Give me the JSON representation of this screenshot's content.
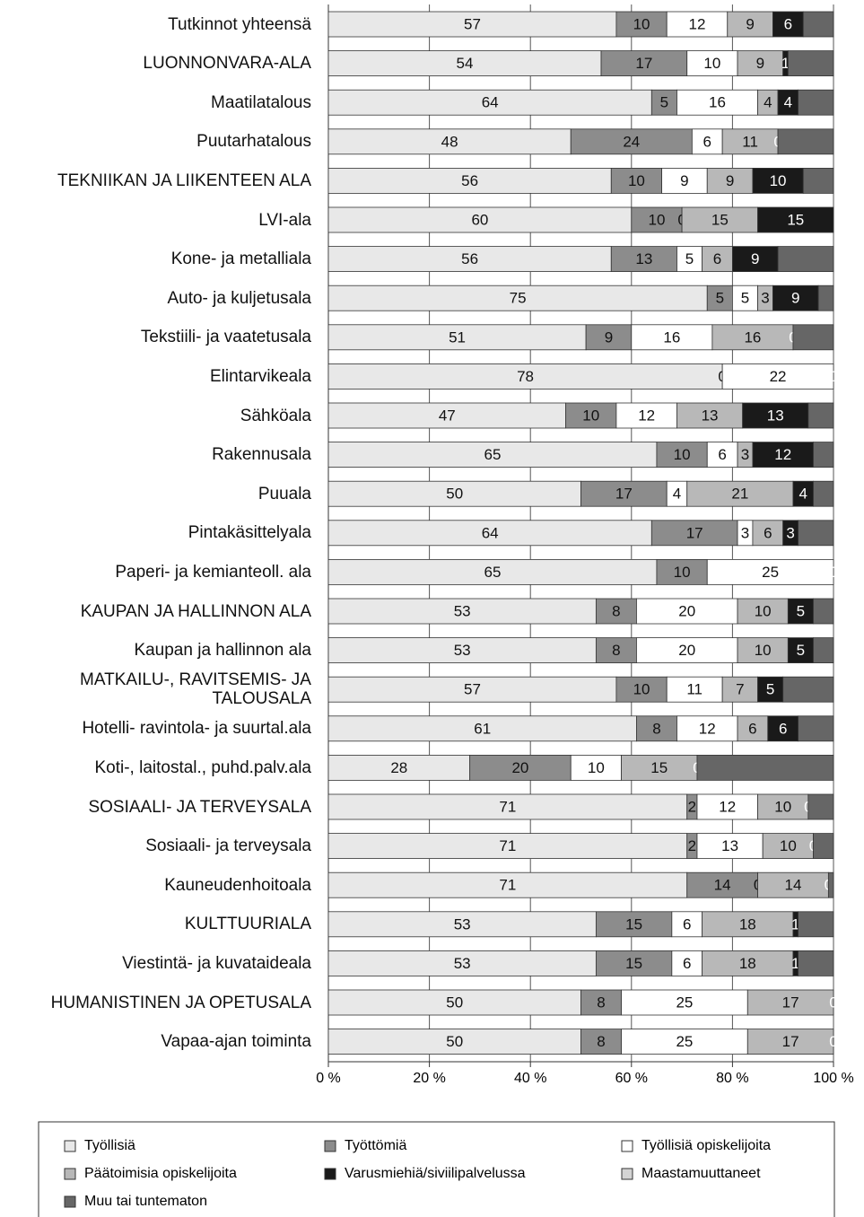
{
  "chart_data": {
    "type": "stacked-bar-horizontal",
    "categories": [
      "Tutkinnot yhteensä",
      "LUONNONVARA-ALA",
      "Maatilatalous",
      "Puutarhatalous",
      "TEKNIIKAN JA LIIKENTEEN ALA",
      "LVI-ala",
      "Kone- ja metalliala",
      "Auto- ja kuljetusala",
      "Tekstiili- ja vaatetusala",
      "Elintarvikeala",
      "Sähköala",
      "Rakennusala",
      "Puuala",
      "Pintakäsittelyala",
      "Paperi- ja kemianteoll. ala",
      "KAUPAN JA HALLINNON ALA",
      "Kaupan ja hallinnon ala",
      "MATKAILU-, RAVITSEMIS- JA\nTALOUSALA",
      "Hotelli- ravintola- ja suurtal.ala",
      "Koti-, laitostal., puhd.palv.ala",
      "SOSIAALI- JA TERVEYSALA",
      "Sosiaali- ja terveysala",
      "Kauneudenhoitoala",
      "KULTTUURIALA",
      "Viestintä- ja kuvataideala",
      "HUMANISTINEN JA OPETUSALA",
      "Vapaa-ajan toiminta"
    ],
    "series": [
      {
        "name": "Työllisiä",
        "color": "#e8e8e8",
        "data_labels": true,
        "values": [
          57,
          54,
          64,
          48,
          56,
          60,
          56,
          75,
          51,
          78,
          47,
          65,
          50,
          64,
          65,
          53,
          53,
          57,
          61,
          28,
          71,
          71,
          71,
          53,
          53,
          50,
          50
        ]
      },
      {
        "name": "Työttömiä",
        "color": "#8c8c8c",
        "data_labels": true,
        "values": [
          10,
          17,
          5,
          24,
          10,
          10,
          13,
          5,
          9,
          0,
          10,
          10,
          17,
          17,
          10,
          8,
          8,
          10,
          8,
          20,
          2,
          2,
          14,
          15,
          15,
          8,
          8
        ]
      },
      {
        "name": "Työllisiä opiskelijoita",
        "color": "#ffffff",
        "data_labels": true,
        "values": [
          12,
          10,
          16,
          6,
          9,
          0,
          5,
          5,
          16,
          22,
          12,
          6,
          4,
          3,
          25,
          20,
          20,
          11,
          12,
          10,
          12,
          13,
          0,
          6,
          6,
          25,
          25
        ]
      },
      {
        "name": "Päätoimisia opiskelijoita",
        "color": "#b8b8b8",
        "data_labels": true,
        "values": [
          9,
          9,
          4,
          11,
          9,
          15,
          6,
          3,
          16,
          null,
          13,
          3,
          21,
          6,
          null,
          10,
          10,
          7,
          6,
          15,
          10,
          10,
          14,
          18,
          18,
          17,
          17
        ]
      },
      {
        "name": "Varusmiehiä/siviilipalvelussa",
        "color": "#1a1a1a",
        "data_labels": true,
        "values": [
          6,
          1,
          4,
          0,
          10,
          15,
          9,
          9,
          0,
          0,
          13,
          12,
          4,
          3,
          0,
          5,
          5,
          5,
          6,
          0,
          0,
          0,
          0,
          1,
          1,
          0,
          0
        ]
      },
      {
        "name": "Maastamuuttaneet",
        "color": "#d4d4d4",
        "data_labels": false,
        "values": [
          0,
          0,
          0,
          0,
          0,
          0,
          0,
          0,
          0,
          0,
          0,
          0,
          0,
          0,
          0,
          0,
          0,
          0,
          0,
          0,
          0,
          0,
          0,
          0,
          0,
          0,
          0
        ]
      },
      {
        "name": "Muu tai tuntematon",
        "color": "#666666",
        "data_labels": false,
        "values": [
          6,
          9,
          7,
          11,
          6,
          0,
          11,
          3,
          8,
          0,
          5,
          4,
          4,
          7,
          0,
          4,
          4,
          10,
          7,
          27,
          5,
          4,
          1,
          7,
          7,
          0,
          0
        ]
      }
    ],
    "xlim": [
      0,
      100
    ],
    "xticks": [
      {
        "value": 0,
        "label": "0 %"
      },
      {
        "value": 20,
        "label": "20 %"
      },
      {
        "value": 40,
        "label": "40 %"
      },
      {
        "value": 60,
        "label": "60 %"
      },
      {
        "value": 80,
        "label": "80 %"
      },
      {
        "value": 100,
        "label": "100 %"
      }
    ],
    "grid": true,
    "legend": "bottom"
  }
}
